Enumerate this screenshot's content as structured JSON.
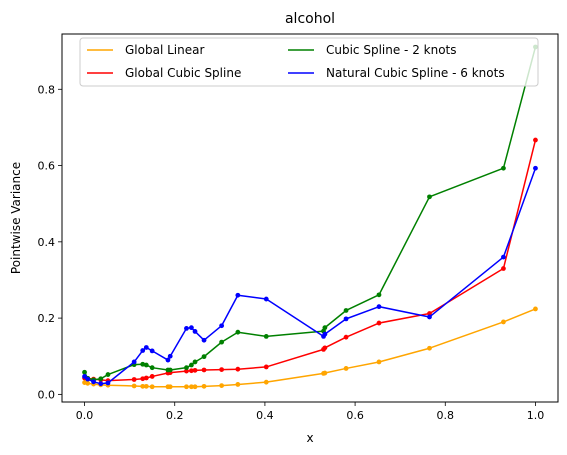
{
  "chart_data": {
    "type": "line",
    "title": "alcohol",
    "xlabel": "x",
    "ylabel": "Pointwise Variance",
    "xlim": [
      -0.05,
      1.05
    ],
    "ylim": [
      -0.02,
      0.945
    ],
    "xticks": [
      0.0,
      0.2,
      0.4,
      0.6,
      0.8,
      1.0
    ],
    "xtick_labels": [
      "0.0",
      "0.2",
      "0.4",
      "0.6",
      "0.8",
      "1.0"
    ],
    "yticks": [
      0.0,
      0.2,
      0.4,
      0.6,
      0.8
    ],
    "ytick_labels": [
      "0.0",
      "0.2",
      "0.4",
      "0.6",
      "0.8"
    ],
    "grid": false,
    "legend_position": "top",
    "legend_columns": 2,
    "series": [
      {
        "name": "Global Linear",
        "color": "#ffa500",
        "x": [
          0.0,
          0.007,
          0.02,
          0.036,
          0.052,
          0.11,
          0.129,
          0.137,
          0.15,
          0.185,
          0.19,
          0.226,
          0.237,
          0.245,
          0.265,
          0.304,
          0.34,
          0.403,
          0.53,
          0.533,
          0.58,
          0.653,
          0.765,
          0.929,
          1.0
        ],
        "y": [
          0.031,
          0.029,
          0.027,
          0.025,
          0.024,
          0.022,
          0.021,
          0.021,
          0.02,
          0.02,
          0.02,
          0.02,
          0.02,
          0.02,
          0.021,
          0.023,
          0.026,
          0.032,
          0.055,
          0.056,
          0.068,
          0.085,
          0.121,
          0.19,
          0.224
        ]
      },
      {
        "name": "Global Cubic Spline",
        "color": "#ff0000",
        "x": [
          0.0,
          0.007,
          0.02,
          0.036,
          0.052,
          0.11,
          0.129,
          0.137,
          0.15,
          0.185,
          0.19,
          0.226,
          0.237,
          0.245,
          0.265,
          0.304,
          0.34,
          0.403,
          0.53,
          0.533,
          0.58,
          0.653,
          0.765,
          0.929,
          1.0
        ],
        "y": [
          0.043,
          0.042,
          0.04,
          0.038,
          0.036,
          0.039,
          0.041,
          0.043,
          0.047,
          0.056,
          0.057,
          0.061,
          0.062,
          0.063,
          0.064,
          0.065,
          0.066,
          0.072,
          0.118,
          0.122,
          0.15,
          0.187,
          0.212,
          0.33,
          0.667
        ]
      },
      {
        "name": "Cubic Spline - 2 knots",
        "color": "#008000",
        "x": [
          0.0,
          0.007,
          0.02,
          0.036,
          0.052,
          0.11,
          0.129,
          0.137,
          0.15,
          0.185,
          0.19,
          0.226,
          0.237,
          0.245,
          0.265,
          0.304,
          0.34,
          0.403,
          0.53,
          0.533,
          0.58,
          0.653,
          0.765,
          0.929,
          1.0
        ],
        "y": [
          0.058,
          0.042,
          0.038,
          0.041,
          0.052,
          0.078,
          0.079,
          0.077,
          0.07,
          0.064,
          0.064,
          0.07,
          0.077,
          0.085,
          0.099,
          0.137,
          0.163,
          0.152,
          0.166,
          0.175,
          0.22,
          0.261,
          0.518,
          0.593,
          0.911
        ]
      },
      {
        "name": "Natural Cubic Spline - 6 knots",
        "color": "#0000ff",
        "x": [
          0.0,
          0.007,
          0.02,
          0.036,
          0.052,
          0.11,
          0.129,
          0.137,
          0.15,
          0.185,
          0.19,
          0.226,
          0.237,
          0.245,
          0.265,
          0.304,
          0.34,
          0.403,
          0.53,
          0.533,
          0.58,
          0.653,
          0.765,
          0.929,
          1.0
        ],
        "y": [
          0.047,
          0.04,
          0.033,
          0.028,
          0.03,
          0.085,
          0.115,
          0.123,
          0.114,
          0.09,
          0.1,
          0.173,
          0.175,
          0.165,
          0.142,
          0.18,
          0.26,
          0.25,
          0.152,
          0.158,
          0.198,
          0.23,
          0.203,
          0.36,
          0.593
        ]
      }
    ]
  }
}
